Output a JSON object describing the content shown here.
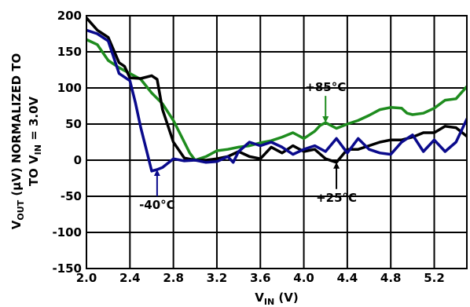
{
  "chart_data": {
    "type": "line",
    "title": "",
    "xlabel": {
      "main": "V",
      "sub": "IN",
      "unit": " (V)"
    },
    "ylabel": {
      "line1": {
        "main": "V",
        "sub": "OUT",
        "rest": " (µV) NORMALIZED TO"
      },
      "line2": {
        "pre": "TO V",
        "sub": "IN",
        "rest": " = 3.0V"
      }
    },
    "xlim": [
      2.0,
      5.5
    ],
    "ylim": [
      -150,
      200
    ],
    "x_ticks": [
      2.0,
      2.4,
      2.8,
      3.2,
      3.6,
      4.0,
      4.4,
      4.8,
      5.2
    ],
    "x_tick_labels": [
      "2.0",
      "2.4",
      "2.8",
      "3.2",
      "3.6",
      "4.0",
      "4.4",
      "4.8",
      "5.2"
    ],
    "y_ticks": [
      200,
      150,
      100,
      50,
      0,
      -50,
      -100,
      -150
    ],
    "y_tick_labels": [
      "200",
      "150",
      "100",
      "50",
      "0",
      "-50",
      "-100",
      "-150"
    ],
    "grid": true,
    "series": [
      {
        "name": "+85°C",
        "color": "#1e8c1e",
        "points": [
          [
            2.0,
            167
          ],
          [
            2.1,
            160
          ],
          [
            2.2,
            138
          ],
          [
            2.3,
            128
          ],
          [
            2.4,
            120
          ],
          [
            2.5,
            112
          ],
          [
            2.6,
            93
          ],
          [
            2.7,
            78
          ],
          [
            2.8,
            55
          ],
          [
            2.9,
            25
          ],
          [
            2.95,
            10
          ],
          [
            3.0,
            0
          ],
          [
            3.1,
            5
          ],
          [
            3.2,
            13
          ],
          [
            3.3,
            15
          ],
          [
            3.4,
            18
          ],
          [
            3.5,
            20
          ],
          [
            3.6,
            24
          ],
          [
            3.7,
            27
          ],
          [
            3.8,
            32
          ],
          [
            3.9,
            38
          ],
          [
            4.0,
            30
          ],
          [
            4.1,
            40
          ],
          [
            4.15,
            48
          ],
          [
            4.2,
            52
          ],
          [
            4.3,
            44
          ],
          [
            4.4,
            50
          ],
          [
            4.5,
            55
          ],
          [
            4.6,
            62
          ],
          [
            4.7,
            70
          ],
          [
            4.8,
            73
          ],
          [
            4.9,
            72
          ],
          [
            4.95,
            65
          ],
          [
            5.0,
            63
          ],
          [
            5.1,
            65
          ],
          [
            5.2,
            72
          ],
          [
            5.3,
            83
          ],
          [
            5.4,
            85
          ],
          [
            5.5,
            102
          ]
        ]
      },
      {
        "name": "+25°C",
        "color": "#000000",
        "points": [
          [
            2.0,
            197
          ],
          [
            2.1,
            180
          ],
          [
            2.2,
            170
          ],
          [
            2.3,
            135
          ],
          [
            2.35,
            130
          ],
          [
            2.4,
            114
          ],
          [
            2.5,
            113
          ],
          [
            2.6,
            117
          ],
          [
            2.65,
            112
          ],
          [
            2.7,
            70
          ],
          [
            2.8,
            25
          ],
          [
            2.9,
            3
          ],
          [
            3.0,
            0
          ],
          [
            3.1,
            0
          ],
          [
            3.2,
            2
          ],
          [
            3.3,
            5
          ],
          [
            3.4,
            12
          ],
          [
            3.5,
            5
          ],
          [
            3.6,
            2
          ],
          [
            3.7,
            18
          ],
          [
            3.8,
            10
          ],
          [
            3.9,
            20
          ],
          [
            4.0,
            12
          ],
          [
            4.1,
            15
          ],
          [
            4.2,
            2
          ],
          [
            4.3,
            -3
          ],
          [
            4.4,
            15
          ],
          [
            4.5,
            15
          ],
          [
            4.6,
            20
          ],
          [
            4.7,
            25
          ],
          [
            4.8,
            28
          ],
          [
            4.9,
            28
          ],
          [
            5.0,
            32
          ],
          [
            5.1,
            38
          ],
          [
            5.2,
            38
          ],
          [
            5.3,
            47
          ],
          [
            5.4,
            45
          ],
          [
            5.5,
            33
          ]
        ]
      },
      {
        "name": "-40°C",
        "color": "#0a0a8c",
        "points": [
          [
            2.0,
            180
          ],
          [
            2.1,
            175
          ],
          [
            2.2,
            165
          ],
          [
            2.3,
            120
          ],
          [
            2.4,
            110
          ],
          [
            2.45,
            80
          ],
          [
            2.5,
            45
          ],
          [
            2.55,
            15
          ],
          [
            2.6,
            -15
          ],
          [
            2.65,
            -13
          ],
          [
            2.7,
            -10
          ],
          [
            2.8,
            2
          ],
          [
            2.9,
            -1
          ],
          [
            3.0,
            0
          ],
          [
            3.1,
            -3
          ],
          [
            3.2,
            -2
          ],
          [
            3.3,
            5
          ],
          [
            3.35,
            -3
          ],
          [
            3.4,
            12
          ],
          [
            3.5,
            25
          ],
          [
            3.6,
            20
          ],
          [
            3.7,
            25
          ],
          [
            3.8,
            18
          ],
          [
            3.9,
            8
          ],
          [
            4.0,
            15
          ],
          [
            4.1,
            20
          ],
          [
            4.2,
            12
          ],
          [
            4.3,
            30
          ],
          [
            4.4,
            10
          ],
          [
            4.5,
            30
          ],
          [
            4.6,
            15
          ],
          [
            4.7,
            10
          ],
          [
            4.8,
            8
          ],
          [
            4.9,
            25
          ],
          [
            5.0,
            35
          ],
          [
            5.1,
            12
          ],
          [
            5.2,
            28
          ],
          [
            5.3,
            12
          ],
          [
            5.4,
            25
          ],
          [
            5.5,
            57
          ]
        ]
      }
    ],
    "annotations": [
      {
        "text": "+85°C",
        "series": "+85°C",
        "x": 4.2,
        "y": 52,
        "direction": "down"
      },
      {
        "text": "-40°C",
        "series": "-40°C",
        "x": 2.65,
        "y": -13,
        "direction": "up"
      },
      {
        "text": "+25°C",
        "series": "+25°C",
        "x": 4.3,
        "y": -3,
        "direction": "up"
      }
    ]
  }
}
